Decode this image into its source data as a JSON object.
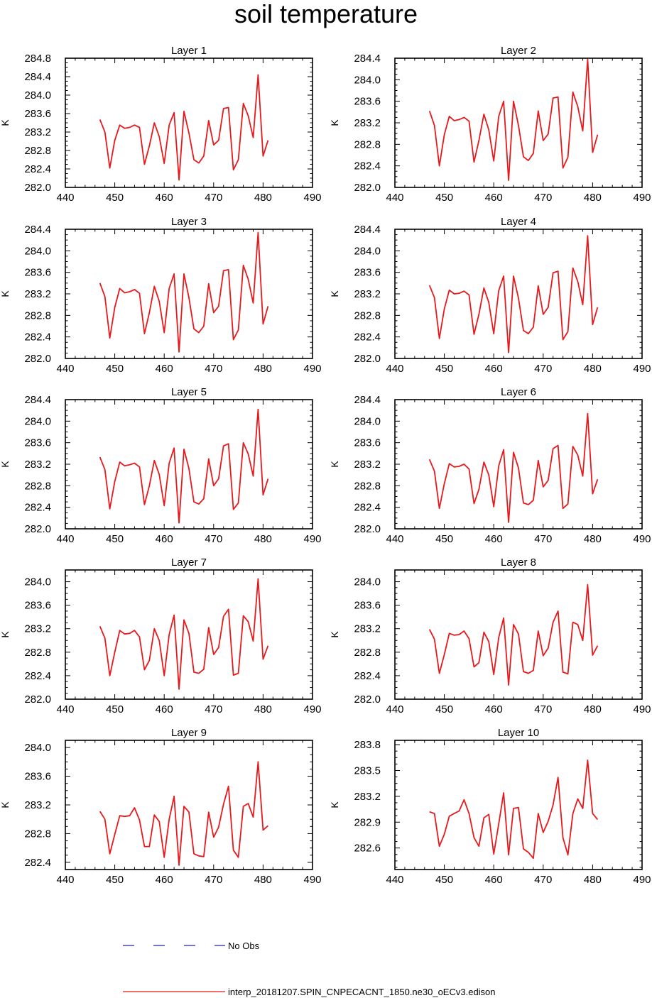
{
  "title": "soil temperature",
  "legend": [
    {
      "label": "No Obs",
      "color": "#1f1fd6",
      "style": "dashed"
    },
    {
      "label": "interp_20181207.SPIN_CNPECACNT_1850.ne30_oECv3.edison",
      "color": "#e8191c",
      "style": "solid"
    }
  ],
  "chart_data": [
    {
      "type": "line",
      "title": "Layer 1",
      "xlabel": "",
      "ylabel": "K",
      "xlim": [
        440,
        490
      ],
      "ylim": [
        282.0,
        284.8
      ],
      "xticks": [
        "440",
        "450",
        "460",
        "470",
        "480",
        "490"
      ],
      "yticks": [
        "282.0",
        "282.4",
        "282.8",
        "283.2",
        "283.6",
        "284.0",
        "284.4",
        "284.8"
      ],
      "series": [
        {
          "name": "interp_20181207.SPIN_CNPECACNT_1850.ne30_oECv3.edison",
          "color": "#e8191c",
          "x": [
            447,
            448,
            449,
            450,
            451,
            452,
            453,
            454,
            455,
            456,
            457,
            458,
            459,
            460,
            461,
            462,
            463,
            464,
            465,
            466,
            467,
            468,
            469,
            470,
            471,
            472,
            473,
            474,
            475,
            476,
            477,
            478,
            479,
            480,
            481
          ],
          "y": [
            283.47,
            283.2,
            282.42,
            283.02,
            283.35,
            283.28,
            283.3,
            283.35,
            283.3,
            282.5,
            282.9,
            283.4,
            283.1,
            282.52,
            283.35,
            283.62,
            282.16,
            283.65,
            283.18,
            282.6,
            282.53,
            282.68,
            283.45,
            282.92,
            283.02,
            283.71,
            283.73,
            282.38,
            282.6,
            283.82,
            283.55,
            283.08,
            284.44,
            282.68,
            283.02
          ]
        }
      ]
    },
    {
      "type": "line",
      "title": "Layer 2",
      "xlabel": "",
      "ylabel": "K",
      "xlim": [
        440,
        490
      ],
      "ylim": [
        282.0,
        284.4
      ],
      "xticks": [
        "440",
        "450",
        "460",
        "470",
        "480",
        "490"
      ],
      "yticks": [
        "282.0",
        "282.4",
        "282.8",
        "283.2",
        "283.6",
        "284.0",
        "284.4"
      ],
      "series": [
        {
          "name": "interp_20181207.SPIN_CNPECACNT_1850.ne30_oECv3.edison",
          "color": "#e8191c",
          "x": [
            447,
            448,
            449,
            450,
            451,
            452,
            453,
            454,
            455,
            456,
            457,
            458,
            459,
            460,
            461,
            462,
            463,
            464,
            465,
            466,
            467,
            468,
            469,
            470,
            471,
            472,
            473,
            474,
            475,
            476,
            477,
            478,
            479,
            480,
            481
          ],
          "y": [
            283.42,
            283.15,
            282.4,
            282.98,
            283.32,
            283.24,
            283.26,
            283.3,
            283.23,
            282.47,
            282.87,
            283.36,
            283.07,
            282.49,
            283.32,
            283.6,
            282.13,
            283.6,
            283.15,
            282.57,
            282.5,
            282.63,
            283.42,
            282.87,
            282.99,
            283.66,
            283.68,
            282.36,
            282.56,
            283.77,
            283.5,
            283.05,
            284.38,
            282.65,
            282.98
          ]
        }
      ]
    },
    {
      "type": "line",
      "title": "Layer 3",
      "xlabel": "",
      "ylabel": "K",
      "xlim": [
        440,
        490
      ],
      "ylim": [
        282.0,
        284.4
      ],
      "xticks": [
        "440",
        "450",
        "460",
        "470",
        "480",
        "490"
      ],
      "yticks": [
        "282.0",
        "282.4",
        "282.8",
        "283.2",
        "283.6",
        "284.0",
        "284.4"
      ],
      "series": [
        {
          "name": "interp_20181207.SPIN_CNPECACNT_1850.ne30_oECv3.edison",
          "color": "#e8191c",
          "x": [
            447,
            448,
            449,
            450,
            451,
            452,
            453,
            454,
            455,
            456,
            457,
            458,
            459,
            460,
            461,
            462,
            463,
            464,
            465,
            466,
            467,
            468,
            469,
            470,
            471,
            472,
            473,
            474,
            475,
            476,
            477,
            478,
            479,
            480,
            481
          ],
          "y": [
            283.4,
            283.15,
            282.38,
            282.95,
            283.3,
            283.22,
            283.24,
            283.28,
            283.21,
            282.46,
            282.85,
            283.34,
            283.06,
            282.48,
            283.3,
            283.57,
            282.12,
            283.57,
            283.13,
            282.55,
            282.48,
            282.6,
            283.39,
            282.85,
            282.97,
            283.63,
            283.65,
            282.35,
            282.53,
            283.73,
            283.47,
            283.03,
            284.34,
            282.64,
            282.97
          ]
        }
      ]
    },
    {
      "type": "line",
      "title": "Layer 4",
      "xlabel": "",
      "ylabel": "K",
      "xlim": [
        440,
        490
      ],
      "ylim": [
        282.0,
        284.4
      ],
      "xticks": [
        "440",
        "450",
        "460",
        "470",
        "480",
        "490"
      ],
      "yticks": [
        "282.0",
        "282.4",
        "282.8",
        "283.2",
        "283.6",
        "284.0",
        "284.4"
      ],
      "series": [
        {
          "name": "interp_20181207.SPIN_CNPECACNT_1850.ne30_oECv3.edison",
          "color": "#e8191c",
          "x": [
            447,
            448,
            449,
            450,
            451,
            452,
            453,
            454,
            455,
            456,
            457,
            458,
            459,
            460,
            461,
            462,
            463,
            464,
            465,
            466,
            467,
            468,
            469,
            470,
            471,
            472,
            473,
            474,
            475,
            476,
            477,
            478,
            479,
            480,
            481
          ],
          "y": [
            283.36,
            283.13,
            282.37,
            282.92,
            283.27,
            283.2,
            283.21,
            283.25,
            283.18,
            282.45,
            282.82,
            283.31,
            283.04,
            282.46,
            283.26,
            283.53,
            282.11,
            283.53,
            283.12,
            282.52,
            282.46,
            282.58,
            283.35,
            282.82,
            282.95,
            283.59,
            283.62,
            282.35,
            282.5,
            283.68,
            283.43,
            283.0,
            284.28,
            282.63,
            282.95
          ]
        }
      ]
    },
    {
      "type": "line",
      "title": "Layer 5",
      "xlabel": "",
      "ylabel": "K",
      "xlim": [
        440,
        490
      ],
      "ylim": [
        282.0,
        284.4
      ],
      "xticks": [
        "440",
        "450",
        "460",
        "470",
        "480",
        "490"
      ],
      "yticks": [
        "282.0",
        "282.4",
        "282.8",
        "283.2",
        "283.6",
        "284.0",
        "284.4"
      ],
      "series": [
        {
          "name": "interp_20181207.SPIN_CNPECACNT_1850.ne30_oECv3.edison",
          "color": "#e8191c",
          "x": [
            447,
            448,
            449,
            450,
            451,
            452,
            453,
            454,
            455,
            456,
            457,
            458,
            459,
            460,
            461,
            462,
            463,
            464,
            465,
            466,
            467,
            468,
            469,
            470,
            471,
            472,
            473,
            474,
            475,
            476,
            477,
            478,
            479,
            480,
            481
          ],
          "y": [
            283.33,
            283.1,
            282.37,
            282.88,
            283.24,
            283.17,
            283.19,
            283.22,
            283.15,
            282.45,
            282.8,
            283.27,
            283.01,
            282.43,
            283.22,
            283.5,
            282.11,
            283.48,
            283.12,
            282.5,
            282.46,
            282.56,
            283.3,
            282.8,
            282.93,
            283.54,
            283.58,
            282.36,
            282.48,
            283.6,
            283.39,
            282.98,
            284.22,
            282.63,
            282.93
          ]
        }
      ]
    },
    {
      "type": "line",
      "title": "Layer 6",
      "xlabel": "",
      "ylabel": "K",
      "xlim": [
        440,
        490
      ],
      "ylim": [
        282.0,
        284.4
      ],
      "xticks": [
        "440",
        "450",
        "460",
        "470",
        "480",
        "490"
      ],
      "yticks": [
        "282.0",
        "282.4",
        "282.8",
        "283.2",
        "283.6",
        "284.0",
        "284.4"
      ],
      "series": [
        {
          "name": "interp_20181207.SPIN_CNPECACNT_1850.ne30_oECv3.edison",
          "color": "#e8191c",
          "x": [
            447,
            448,
            449,
            450,
            451,
            452,
            453,
            454,
            455,
            456,
            457,
            458,
            459,
            460,
            461,
            462,
            463,
            464,
            465,
            466,
            467,
            468,
            469,
            470,
            471,
            472,
            473,
            474,
            475,
            476,
            477,
            478,
            479,
            480,
            481
          ],
          "y": [
            283.29,
            283.07,
            282.38,
            282.84,
            283.21,
            283.15,
            283.16,
            283.2,
            283.11,
            282.47,
            282.73,
            283.24,
            283.0,
            282.41,
            283.17,
            283.47,
            282.12,
            283.42,
            283.13,
            282.48,
            282.45,
            282.53,
            283.27,
            282.78,
            282.9,
            283.49,
            283.55,
            282.38,
            282.46,
            283.53,
            283.37,
            282.98,
            284.14,
            282.65,
            282.92
          ]
        }
      ]
    },
    {
      "type": "line",
      "title": "Layer 7",
      "xlabel": "",
      "ylabel": "K",
      "xlim": [
        440,
        490
      ],
      "ylim": [
        282.0,
        284.2
      ],
      "xticks": [
        "440",
        "450",
        "460",
        "470",
        "480",
        "490"
      ],
      "yticks": [
        "282.0",
        "282.4",
        "282.8",
        "283.2",
        "283.6",
        "284.0"
      ],
      "series": [
        {
          "name": "interp_20181207.SPIN_CNPECACNT_1850.ne30_oECv3.edison",
          "color": "#e8191c",
          "x": [
            447,
            448,
            449,
            450,
            451,
            452,
            453,
            454,
            455,
            456,
            457,
            458,
            459,
            460,
            461,
            462,
            463,
            464,
            465,
            466,
            467,
            468,
            469,
            470,
            471,
            472,
            473,
            474,
            475,
            476,
            477,
            478,
            479,
            480,
            481
          ],
          "y": [
            283.24,
            283.04,
            282.4,
            282.8,
            283.17,
            283.11,
            283.12,
            283.17,
            283.06,
            282.5,
            282.66,
            283.2,
            283.0,
            282.4,
            283.1,
            283.43,
            282.17,
            283.35,
            283.12,
            282.46,
            282.44,
            282.51,
            283.22,
            282.76,
            282.88,
            283.41,
            283.53,
            282.41,
            282.44,
            283.42,
            283.32,
            282.99,
            284.05,
            282.68,
            282.91
          ]
        }
      ]
    },
    {
      "type": "line",
      "title": "Layer 8",
      "xlabel": "",
      "ylabel": "K",
      "xlim": [
        440,
        490
      ],
      "ylim": [
        282.0,
        284.2
      ],
      "xticks": [
        "440",
        "450",
        "460",
        "470",
        "480",
        "490"
      ],
      "yticks": [
        "282.0",
        "282.4",
        "282.8",
        "283.2",
        "283.6",
        "284.0"
      ],
      "series": [
        {
          "name": "interp_20181207.SPIN_CNPECACNT_1850.ne30_oECv3.edison",
          "color": "#e8191c",
          "x": [
            447,
            448,
            449,
            450,
            451,
            452,
            453,
            454,
            455,
            456,
            457,
            458,
            459,
            460,
            461,
            462,
            463,
            464,
            465,
            466,
            467,
            468,
            469,
            470,
            471,
            472,
            473,
            474,
            475,
            476,
            477,
            478,
            479,
            480,
            481
          ],
          "y": [
            283.19,
            283.02,
            282.44,
            282.76,
            283.12,
            283.09,
            283.1,
            283.16,
            283.03,
            282.55,
            282.62,
            283.14,
            282.98,
            282.42,
            283.05,
            283.38,
            282.24,
            283.27,
            283.11,
            282.47,
            282.44,
            282.49,
            283.16,
            282.74,
            282.87,
            283.31,
            283.5,
            282.46,
            282.43,
            283.31,
            283.27,
            283.0,
            283.95,
            282.75,
            282.91
          ]
        }
      ]
    },
    {
      "type": "line",
      "title": "Layer 9",
      "xlabel": "",
      "ylabel": "K",
      "xlim": [
        440,
        490
      ],
      "ylim": [
        282.3,
        284.1
      ],
      "xticks": [
        "440",
        "450",
        "460",
        "470",
        "480",
        "490"
      ],
      "yticks": [
        "282.4",
        "282.8",
        "283.2",
        "283.6",
        "284.0"
      ],
      "series": [
        {
          "name": "interp_20181207.SPIN_CNPECACNT_1850.ne30_oECv3.edison",
          "color": "#e8191c",
          "x": [
            447,
            448,
            449,
            450,
            451,
            452,
            453,
            454,
            455,
            456,
            457,
            458,
            459,
            460,
            461,
            462,
            463,
            464,
            465,
            466,
            467,
            468,
            469,
            470,
            471,
            472,
            473,
            474,
            475,
            476,
            477,
            478,
            479,
            480,
            481
          ],
          "y": [
            283.11,
            283.0,
            282.52,
            282.79,
            283.05,
            283.04,
            283.05,
            283.16,
            282.99,
            282.62,
            282.62,
            283.06,
            282.97,
            282.47,
            283.0,
            283.32,
            282.36,
            283.18,
            283.1,
            282.52,
            282.49,
            282.48,
            283.1,
            282.75,
            282.89,
            283.21,
            283.46,
            282.57,
            282.47,
            283.18,
            283.22,
            283.03,
            283.8,
            282.85,
            282.91
          ]
        }
      ]
    },
    {
      "type": "line",
      "title": "Layer 10",
      "xlabel": "",
      "ylabel": "K",
      "xlim": [
        440,
        490
      ],
      "ylim": [
        282.35,
        283.85
      ],
      "xticks": [
        "440",
        "450",
        "460",
        "470",
        "480",
        "490"
      ],
      "yticks": [
        "282.6",
        "282.9",
        "283.2",
        "283.5",
        "283.8"
      ],
      "series": [
        {
          "name": "interp_20181207.SPIN_CNPECACNT_1850.ne30_oECv3.edison",
          "color": "#e8191c",
          "x": [
            447,
            448,
            449,
            450,
            451,
            452,
            453,
            454,
            455,
            456,
            457,
            458,
            459,
            460,
            461,
            462,
            463,
            464,
            465,
            466,
            467,
            468,
            469,
            470,
            471,
            472,
            473,
            474,
            475,
            476,
            477,
            478,
            479,
            480,
            481
          ],
          "y": [
            283.02,
            283.0,
            282.62,
            282.76,
            282.97,
            283.0,
            283.03,
            283.16,
            283.0,
            282.72,
            282.62,
            282.95,
            282.99,
            282.53,
            282.88,
            283.24,
            282.52,
            283.06,
            283.07,
            282.59,
            282.55,
            282.48,
            283.0,
            282.78,
            282.91,
            283.1,
            283.42,
            282.72,
            282.52,
            283.0,
            283.17,
            283.06,
            283.62,
            283.0,
            282.93
          ]
        }
      ]
    }
  ]
}
